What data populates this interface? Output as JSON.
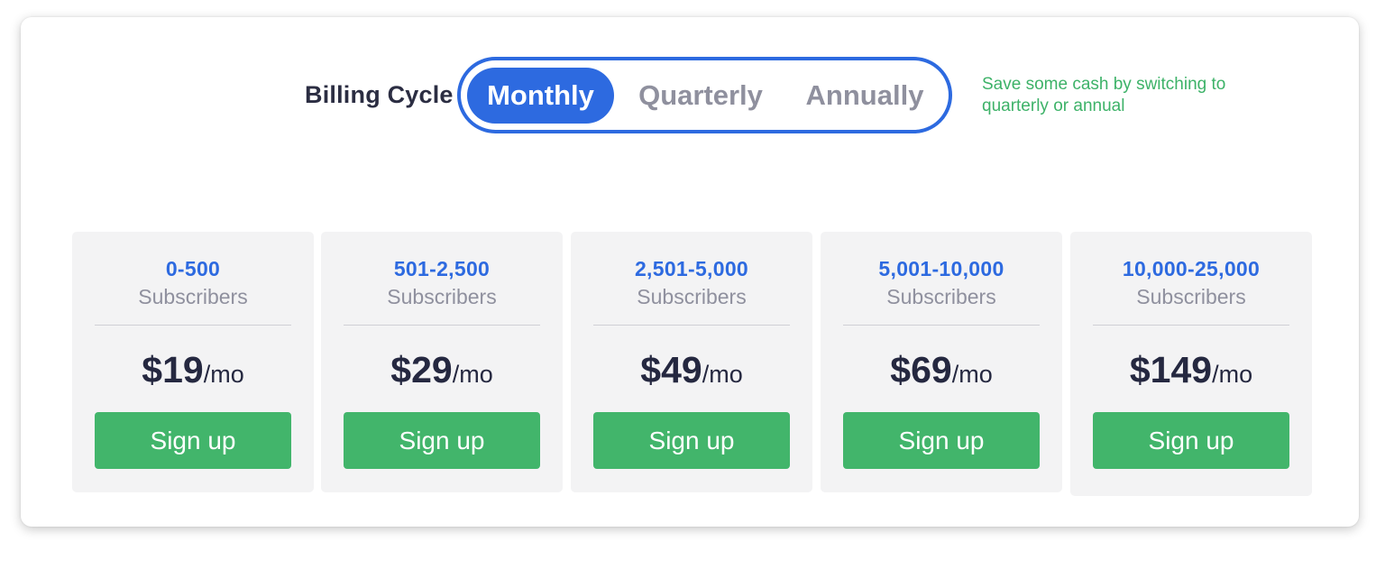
{
  "billing": {
    "label": "Billing Cycle",
    "options": [
      {
        "label": "Monthly",
        "selected": true
      },
      {
        "label": "Quarterly",
        "selected": false
      },
      {
        "label": "Annually",
        "selected": false
      }
    ],
    "savings_note": "Save some cash by switching to quarterly or annual"
  },
  "tiers": [
    {
      "range": "0-500",
      "unit": "Subscribers",
      "price": "$19",
      "period": "/mo",
      "button": "Sign up"
    },
    {
      "range": "501-2,500",
      "unit": "Subscribers",
      "price": "$29",
      "period": "/mo",
      "button": "Sign up"
    },
    {
      "range": "2,501-5,000",
      "unit": "Subscribers",
      "price": "$49",
      "period": "/mo",
      "button": "Sign up"
    },
    {
      "range": "5,001-10,000",
      "unit": "Subscribers",
      "price": "$69",
      "period": "/mo",
      "button": "Sign up"
    },
    {
      "range": "10,000-25,000",
      "unit": "Subscribers",
      "price": "$149",
      "period": "/mo",
      "button": "Sign up"
    }
  ],
  "colors": {
    "accent_blue": "#2d6ae0",
    "signup_green": "#42b56b",
    "savings_green": "#3db268",
    "muted_gray": "#8f909e",
    "dark_text": "#252840"
  }
}
